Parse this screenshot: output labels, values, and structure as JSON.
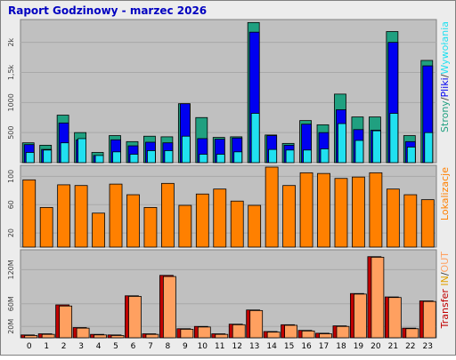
{
  "title": "Raport Godzinowy -  marzec 2026",
  "colors": {
    "frame_bg": "#ececec",
    "plot_bg": "#c0c0c0",
    "title": "#0000c0",
    "strony": "#20a080",
    "pliki": "#0000f0",
    "wywolania": "#20e0f0",
    "lokalizacje": "#ff8000",
    "transfer": "#c00000",
    "in": "#e0a000",
    "out": "#ffa060"
  },
  "chart_data": [
    {
      "type": "bar",
      "name": "hits",
      "categories": [
        "0",
        "1",
        "2",
        "3",
        "4",
        "5",
        "6",
        "7",
        "8",
        "9",
        "10",
        "11",
        "12",
        "13",
        "14",
        "15",
        "16",
        "17",
        "18",
        "19",
        "20",
        "21",
        "22",
        "23"
      ],
      "ylim": [
        0,
        2350
      ],
      "yticks": [
        500,
        1000,
        1500,
        2000
      ],
      "yticklabels": [
        "500",
        "1000",
        "1,5k",
        "2k"
      ],
      "grid": true,
      "legend": [
        {
          "key": "strony",
          "label": "Strony"
        },
        {
          "key": "sep",
          "label": "/"
        },
        {
          "key": "pliki",
          "label": "Pliki"
        },
        {
          "key": "sep",
          "label": "/"
        },
        {
          "key": "wywolania",
          "label": "Wywołania"
        }
      ],
      "series": [
        {
          "name": "Strony",
          "values": [
            330,
            290,
            790,
            500,
            170,
            450,
            350,
            440,
            430,
            980,
            750,
            420,
            430,
            2330,
            460,
            320,
            700,
            630,
            1140,
            760,
            760,
            2180,
            450,
            1700
          ]
        },
        {
          "name": "Pliki",
          "values": [
            300,
            220,
            660,
            380,
            120,
            380,
            280,
            340,
            330,
            980,
            400,
            390,
            410,
            2170,
            450,
            290,
            640,
            500,
            880,
            550,
            540,
            2000,
            350,
            1610
          ]
        },
        {
          "name": "Wywołania",
          "values": [
            170,
            210,
            330,
            400,
            120,
            180,
            140,
            200,
            200,
            440,
            140,
            140,
            180,
            820,
            220,
            210,
            210,
            230,
            650,
            370,
            530,
            820,
            260,
            500
          ]
        }
      ]
    },
    {
      "type": "bar",
      "name": "visits",
      "categories": [
        "0",
        "1",
        "2",
        "3",
        "4",
        "5",
        "6",
        "7",
        "8",
        "9",
        "10",
        "11",
        "12",
        "13",
        "14",
        "15",
        "16",
        "17",
        "18",
        "19",
        "20",
        "21",
        "22",
        "23"
      ],
      "ylim": [
        0,
        113
      ],
      "yticks": [
        20,
        60,
        100
      ],
      "yticklabels": [
        "20",
        "60",
        "100"
      ],
      "grid": true,
      "legend": [
        {
          "key": "lokalizacje",
          "label": "Lokalizacje"
        }
      ],
      "series": [
        {
          "name": "Lokalizacje",
          "values": [
            95,
            56,
            88,
            87,
            48,
            89,
            74,
            56,
            90,
            59,
            75,
            82,
            65,
            59,
            113,
            87,
            105,
            104,
            97,
            99,
            105,
            82,
            74,
            67
          ]
        }
      ]
    },
    {
      "type": "bar",
      "name": "transfer",
      "categories": [
        "0",
        "1",
        "2",
        "3",
        "4",
        "5",
        "6",
        "7",
        "8",
        "9",
        "10",
        "11",
        "12",
        "13",
        "14",
        "15",
        "16",
        "17",
        "18",
        "19",
        "20",
        "21",
        "22",
        "23"
      ],
      "ylim": [
        0,
        152
      ],
      "yticks": [
        20,
        60,
        120
      ],
      "yticklabels": [
        "20M",
        "60M",
        "120M"
      ],
      "grid": true,
      "legend": [
        {
          "key": "transfer",
          "label": "Transfer"
        },
        {
          "key": "sep",
          "label": " "
        },
        {
          "key": "in",
          "label": "IN"
        },
        {
          "key": "sep",
          "label": "/"
        },
        {
          "key": "out",
          "label": "OUT"
        }
      ],
      "series": [
        {
          "name": "IN",
          "values": [
            5,
            7,
            58,
            18,
            6,
            5,
            74,
            7,
            110,
            16,
            20,
            7,
            24,
            49,
            11,
            23,
            13,
            8,
            21,
            78,
            143,
            72,
            17,
            65
          ]
        },
        {
          "name": "OUT",
          "values": [
            4,
            6,
            56,
            17,
            5,
            4,
            73,
            6,
            108,
            15,
            19,
            6,
            23,
            48,
            10,
            22,
            12,
            7,
            20,
            77,
            142,
            71,
            16,
            64
          ]
        }
      ]
    }
  ]
}
